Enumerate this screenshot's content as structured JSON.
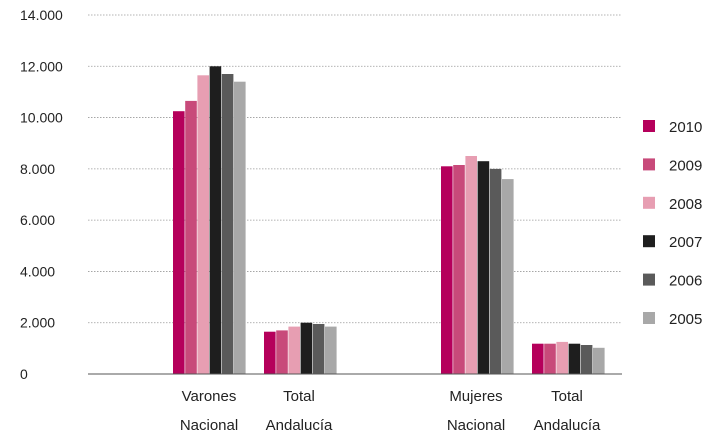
{
  "chart_data": {
    "type": "bar",
    "title": "",
    "xlabel": "",
    "ylabel": "",
    "ylim": [
      0,
      14000
    ],
    "yticks": [
      "0",
      "2.000",
      "4.000",
      "6.000",
      "8.000",
      "10.000",
      "12.000",
      "14.000"
    ],
    "grid": true,
    "legend_position": "right",
    "groups": [
      {
        "label": "Varones",
        "categories": [
          {
            "line1": "Varones",
            "line2": "Nacional"
          },
          {
            "line1": "Total",
            "line2": "Andalucía"
          }
        ]
      },
      {
        "label": "Mujeres",
        "categories": [
          {
            "line1": "Mujeres",
            "line2": "Nacional"
          },
          {
            "line1": "Total",
            "line2": "Andalucía"
          }
        ]
      }
    ],
    "categories": [
      "Varones Nacional",
      "Varones Total Andalucía",
      "Mujeres Nacional",
      "Mujeres Total Andalucía"
    ],
    "series": [
      {
        "name": "2010",
        "color": "#b5005b",
        "values": [
          10250,
          1650,
          8100,
          1180
        ]
      },
      {
        "name": "2009",
        "color": "#c84a7a",
        "values": [
          10650,
          1700,
          8150,
          1180
        ]
      },
      {
        "name": "2008",
        "color": "#e79eb2",
        "values": [
          11650,
          1850,
          8500,
          1250
        ]
      },
      {
        "name": "2007",
        "color": "#1e1e1e",
        "values": [
          12000,
          2000,
          8300,
          1180
        ]
      },
      {
        "name": "2006",
        "color": "#5a5a5a",
        "values": [
          11700,
          1950,
          8000,
          1130
        ]
      },
      {
        "name": "2005",
        "color": "#a8a8a8",
        "values": [
          11400,
          1850,
          7600,
          1020
        ]
      }
    ]
  }
}
